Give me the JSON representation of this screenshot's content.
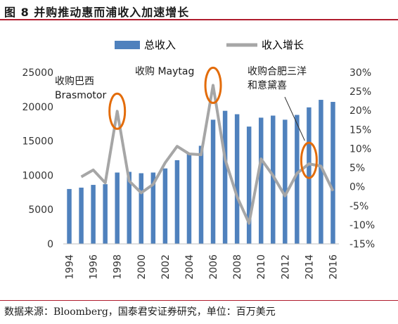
{
  "figure_title": "图 8 并购推动惠而浦收入加速增长",
  "source_note": "数据来源：Bloomberg，国泰君安证券研究，单位：百万美元",
  "colors": {
    "bar": "#4f81bd",
    "line": "#a6a6a6",
    "marker": "#e36c0a",
    "rule": "#b01c2e"
  },
  "chart_data": {
    "type": "bar+line",
    "categories": [
      "1994",
      "1995",
      "1996",
      "1997",
      "1998",
      "1999",
      "2000",
      "2001",
      "2002",
      "2003",
      "2004",
      "2005",
      "2006",
      "2007",
      "2008",
      "2009",
      "2010",
      "2011",
      "2012",
      "2013",
      "2014",
      "2015",
      "2016"
    ],
    "x_tick_labels": [
      "1994",
      "1996",
      "1998",
      "2000",
      "2002",
      "2004",
      "2006",
      "2008",
      "2010",
      "2012",
      "2014",
      "2016"
    ],
    "series": [
      {
        "name": "总收入",
        "type": "bar",
        "axis": "left",
        "values": [
          8000,
          8200,
          8600,
          8700,
          10400,
          10500,
          10300,
          10400,
          11000,
          12200,
          13200,
          14300,
          18100,
          19400,
          18900,
          17100,
          18400,
          18700,
          18100,
          18800,
          19900,
          21000,
          20700
        ]
      },
      {
        "name": "收入增长",
        "type": "line",
        "axis": "right",
        "values": [
          null,
          2.6,
          4.4,
          1.0,
          19.8,
          1.5,
          -1.6,
          0.6,
          6.3,
          10.6,
          8.6,
          8.4,
          26.6,
          7.2,
          -2.6,
          -9.6,
          7.3,
          2.9,
          -2.4,
          3.5,
          6.0,
          5.4,
          -1.1
        ]
      }
    ],
    "y_left": {
      "min": 0,
      "max": 25000,
      "ticks": [
        "0",
        "5000",
        "10000",
        "15000",
        "20000",
        "25000"
      ]
    },
    "y_right": {
      "min": -15,
      "max": 30,
      "ticks": [
        "-15%",
        "-10%",
        "-5%",
        "0%",
        "5%",
        "10%",
        "15%",
        "20%",
        "25%",
        "30%"
      ]
    },
    "legend": {
      "position": "top",
      "items": [
        "总收入",
        "收入增长"
      ]
    },
    "grid": false,
    "annotations": [
      {
        "lines": [
          "收购巴西",
          "Brasmotor"
        ],
        "category": "1998"
      },
      {
        "lines": [
          "收购 Maytag"
        ],
        "category": "2006"
      },
      {
        "lines": [
          "收购合肥三洋",
          "和意黛喜"
        ],
        "category": "2014"
      }
    ]
  }
}
